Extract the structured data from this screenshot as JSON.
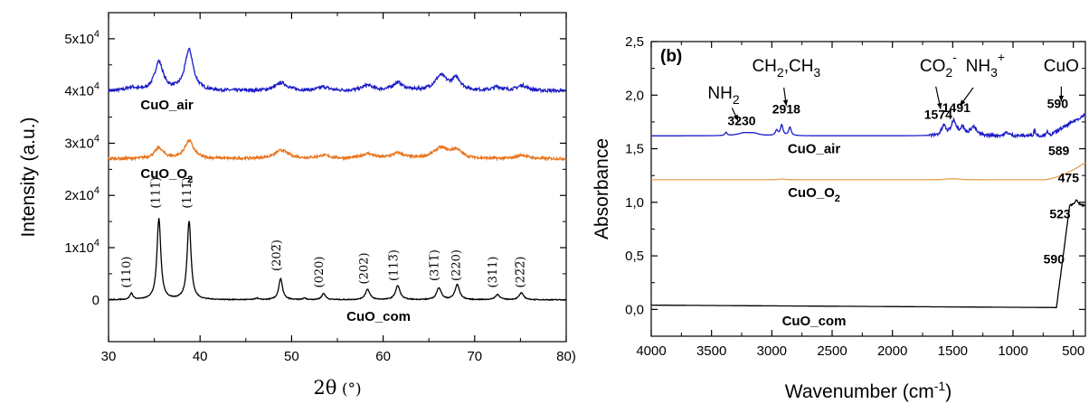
{
  "chart_data": [
    {
      "type": "line",
      "xlabel_symbol": "2θ",
      "xlabel_unit": "(°)",
      "ylabel": "Intensity (a.u.)",
      "xlim": [
        30,
        80
      ],
      "ylim": [
        -8000,
        55000
      ],
      "x_ticks": [
        30,
        40,
        50,
        60,
        70,
        80
      ],
      "x_tick_labels": [
        "30",
        "40",
        "50",
        "60",
        "70",
        "80)"
      ],
      "y_ticks": [
        {
          "value": 0,
          "mantissa": "0",
          "exp": ""
        },
        {
          "value": 10000,
          "mantissa": "1x10",
          "exp": "4"
        },
        {
          "value": 20000,
          "mantissa": "2x10",
          "exp": "4"
        },
        {
          "value": 30000,
          "mantissa": "3x10",
          "exp": "4"
        },
        {
          "value": 40000,
          "mantissa": "4x10",
          "exp": "4"
        },
        {
          "value": 50000,
          "mantissa": "5x10",
          "exp": "4"
        }
      ],
      "series": [
        {
          "name": "CuO_air",
          "name_main": "CuO_air",
          "name_sub": "",
          "color": "#1c1cc8",
          "baseline": 40000,
          "peaks": [
            [
              32.5,
              600,
              0.6
            ],
            [
              35.5,
              5500,
              0.55
            ],
            [
              38.8,
              7800,
              0.55
            ],
            [
              48.9,
              1500,
              0.8
            ],
            [
              53.5,
              700,
              0.7
            ],
            [
              58.3,
              1000,
              0.7
            ],
            [
              61.6,
              1500,
              0.7
            ],
            [
              66.3,
              2800,
              0.8
            ],
            [
              68.0,
              2200,
              0.6
            ],
            [
              72.5,
              700,
              0.6
            ],
            [
              75.2,
              1000,
              0.7
            ]
          ],
          "noise": 300,
          "label_x": 33.5,
          "label_y": 36500
        },
        {
          "name": "CuO_O2",
          "name_main": "CuO_O",
          "name_sub": "2",
          "color": "#e8741c",
          "baseline": 27000,
          "peaks": [
            [
              35.5,
              2000,
              0.6
            ],
            [
              38.8,
              3400,
              0.6
            ],
            [
              48.9,
              1600,
              0.9
            ],
            [
              53.5,
              600,
              0.8
            ],
            [
              58.3,
              900,
              0.8
            ],
            [
              61.6,
              1000,
              0.8
            ],
            [
              66.3,
              2000,
              1.0
            ],
            [
              68.0,
              1500,
              0.7
            ],
            [
              75.2,
              700,
              0.7
            ]
          ],
          "noise": 250,
          "label_x": 33.5,
          "label_y": 23300
        },
        {
          "name": "CuO_com",
          "name_main": "CuO_com",
          "name_sub": "",
          "color": "#000000",
          "baseline": 0,
          "peaks": [
            [
              32.5,
              1200,
              0.2
            ],
            [
              35.5,
              15500,
              0.25
            ],
            [
              38.8,
              15000,
              0.25
            ],
            [
              46.2,
              300,
              0.2
            ],
            [
              48.8,
              4000,
              0.25
            ],
            [
              51.4,
              300,
              0.2
            ],
            [
              53.5,
              1200,
              0.25
            ],
            [
              58.3,
              2000,
              0.3
            ],
            [
              61.6,
              2700,
              0.3
            ],
            [
              66.1,
              2300,
              0.3
            ],
            [
              68.1,
              2900,
              0.3
            ],
            [
              72.5,
              1000,
              0.3
            ],
            [
              75.1,
              1300,
              0.3
            ]
          ],
          "noise": 80,
          "label_x": 56,
          "label_y": -4000
        }
      ],
      "annotations": [
        {
          "text": "(110)",
          "x": 32.0,
          "y": 2300
        },
        {
          "text": "(111̅)",
          "x": 35.2,
          "y": 17500
        },
        {
          "text": "(111̅)",
          "x": 38.6,
          "y": 17500
        },
        {
          "text": "(202̅)",
          "x": 48.4,
          "y": 5500
        },
        {
          "text": "(020)",
          "x": 53.0,
          "y": 2300
        },
        {
          "text": "(202)",
          "x": 57.9,
          "y": 3000
        },
        {
          "text": "(113̅)",
          "x": 61.2,
          "y": 3600
        },
        {
          "text": "(31̅1̅)",
          "x": 65.6,
          "y": 3600
        },
        {
          "text": "(220)",
          "x": 68.0,
          "y": 3600
        },
        {
          "text": "(311)",
          "x": 72.0,
          "y": 2300
        },
        {
          "text": "(22̅2̅)",
          "x": 75.0,
          "y": 2300
        }
      ]
    },
    {
      "type": "line",
      "panel_tag": "(b)",
      "xlabel_main": "Wavenumber (cm",
      "xlabel_exp": "-1",
      "xlabel_close": ")",
      "ylabel": "Absorbance",
      "xlim": [
        4000,
        400
      ],
      "ylim": [
        -0.25,
        2.5
      ],
      "x_ticks": [
        4000,
        3500,
        3000,
        2500,
        2000,
        1500,
        1000,
        500
      ],
      "x_tick_labels": [
        "4000",
        "3500",
        "3000",
        "2500",
        "2000",
        "1500",
        "1000",
        "500"
      ],
      "y_ticks": [
        0.0,
        0.5,
        1.0,
        1.5,
        2.0,
        2.5
      ],
      "y_tick_labels": [
        "0,0",
        "0,5",
        "1,0",
        "1,5",
        "2,0",
        "2,5"
      ],
      "series": [
        {
          "name": "CuO_air",
          "name_main": "CuO_air",
          "name_sub": "",
          "color": "#1c1cc8",
          "baseline": 1.62,
          "label_x": 2650,
          "label_y": 1.46
        },
        {
          "name": "CuO_O2",
          "name_main": "CuO_O",
          "name_sub": "2",
          "color": "#e8a050",
          "baseline": 1.21,
          "label_x": 2650,
          "label_y": 1.05
        },
        {
          "name": "CuO_com",
          "name_main": "CuO_com",
          "name_sub": "",
          "color": "#000000",
          "baseline": 0.04,
          "label_x": 2650,
          "label_y": -0.15
        }
      ],
      "peak_labels": [
        {
          "text": "3230",
          "x": 3250,
          "y": 1.72
        },
        {
          "text": "2918",
          "x": 2880,
          "y": 1.83
        },
        {
          "text": "1574",
          "x": 1620,
          "y": 1.78
        },
        {
          "text": "1491",
          "x": 1470,
          "y": 1.84
        },
        {
          "text": "590",
          "x": 630,
          "y": 1.88
        },
        {
          "text": "589",
          "x": 620,
          "y": 1.44
        },
        {
          "text": "475",
          "x": 540,
          "y": 1.19
        },
        {
          "text": "523",
          "x": 610,
          "y": 0.85
        },
        {
          "text": "590",
          "x": 660,
          "y": 0.43
        }
      ],
      "group_labels": [
        {
          "main": "NH",
          "sub": "2",
          "sup": "",
          "tail": "",
          "x": 3400,
          "y": 1.97
        },
        {
          "main": "CH",
          "sub": "2",
          "sup": "",
          "tail": ",CH",
          "tail_sub": "3",
          "x": 2880,
          "y": 2.22
        },
        {
          "main": "CO",
          "sub": "2",
          "sup": "-",
          "tail": "",
          "x": 1620,
          "y": 2.22
        },
        {
          "main": "NH",
          "sub": "3",
          "sup": "+",
          "tail": "",
          "x": 1230,
          "y": 2.22
        },
        {
          "main": "CuO",
          "sub": "",
          "sup": "",
          "tail": "",
          "x": 600,
          "y": 2.22
        }
      ]
    }
  ]
}
